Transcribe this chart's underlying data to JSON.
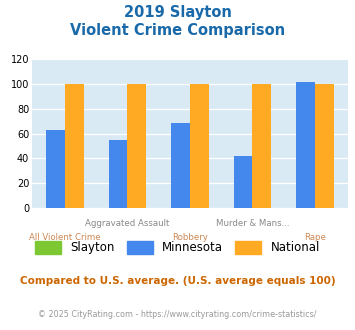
{
  "title_line1": "2019 Slayton",
  "title_line2": "Violent Crime Comparison",
  "categories": [
    "All Violent Crime",
    "Aggravated Assault",
    "Robbery",
    "Murder & Mans...",
    "Rape"
  ],
  "top_labels": [
    "",
    "Aggravated Assault",
    "",
    "Murder & Mans...",
    ""
  ],
  "bot_labels": [
    "All Violent Crime",
    "",
    "Robbery",
    "",
    "Rape"
  ],
  "slayton_values": [
    0,
    0,
    0,
    0,
    0
  ],
  "minnesota_values": [
    63,
    55,
    69,
    42,
    102
  ],
  "national_values": [
    100,
    100,
    100,
    100,
    100
  ],
  "slayton_color": "#7dc832",
  "minnesota_color": "#4488ee",
  "national_color": "#ffaa22",
  "bg_color": "#daeaf4",
  "ylim": [
    0,
    120
  ],
  "yticks": [
    0,
    20,
    40,
    60,
    80,
    100,
    120
  ],
  "legend_labels": [
    "Slayton",
    "Minnesota",
    "National"
  ],
  "footnote1": "Compared to U.S. average. (U.S. average equals 100)",
  "footnote2": "© 2025 CityRating.com - https://www.cityrating.com/crime-statistics/",
  "title_color": "#1a6aaa",
  "top_label_color": "#888888",
  "bot_label_color": "#cc8855",
  "footnote1_color": "#cc6600",
  "footnote2_color": "#999999"
}
